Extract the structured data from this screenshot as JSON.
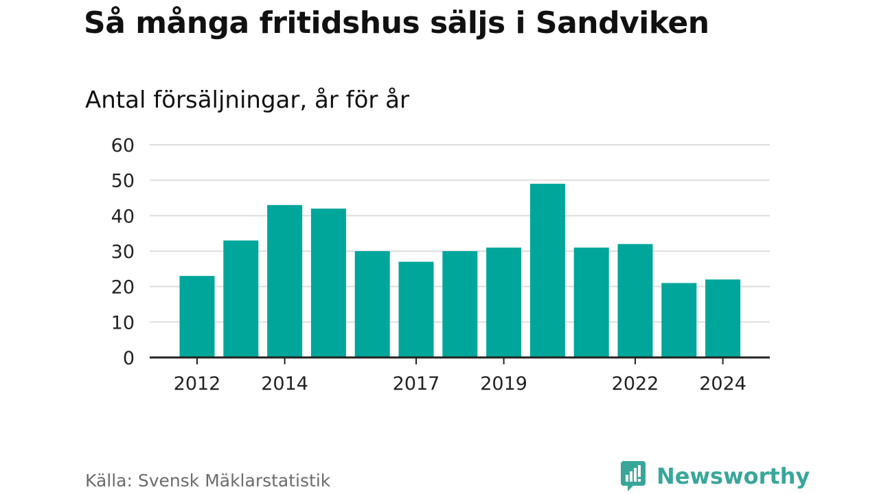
{
  "title": "Så många fritidshus säljs i Sandviken",
  "subtitle": "Antal försäljningar, år för år",
  "source": "Källa: Svensk Mäklarstatistik",
  "brand": {
    "name": "Newsworthy",
    "icon": "newsworthy-logo-icon",
    "color": "#3aa69a"
  },
  "colors": {
    "bar": "#00a69a",
    "grid": "#dddddd",
    "axis": "#222222",
    "text": "#222222"
  },
  "chart_data": {
    "type": "bar",
    "title": "Så många fritidshus säljs i Sandviken",
    "subtitle": "Antal försäljningar, år för år",
    "categories": [
      "2012",
      "2013",
      "2014",
      "2015",
      "2016",
      "2017",
      "2018",
      "2019",
      "2020",
      "2021",
      "2022",
      "2023",
      "2024"
    ],
    "values": [
      23,
      33,
      43,
      42,
      30,
      27,
      30,
      31,
      49,
      31,
      32,
      21,
      22
    ],
    "x_tick_labels": [
      "2012",
      "2014",
      "2017",
      "2019",
      "2022",
      "2024"
    ],
    "y_ticks": [
      0,
      10,
      20,
      30,
      40,
      50,
      60
    ],
    "ylim": [
      0,
      60
    ],
    "grid": true,
    "legend": "none"
  }
}
